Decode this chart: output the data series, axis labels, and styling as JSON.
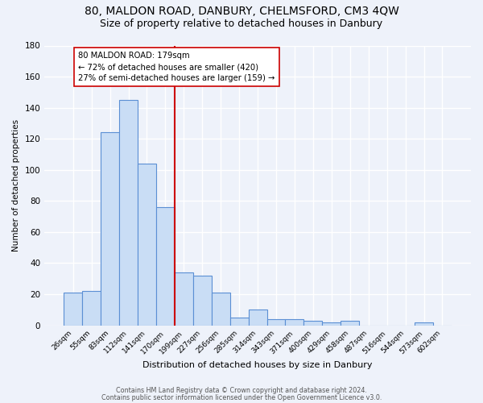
{
  "title1": "80, MALDON ROAD, DANBURY, CHELMSFORD, CM3 4QW",
  "title2": "Size of property relative to detached houses in Danbury",
  "xlabel": "Distribution of detached houses by size in Danbury",
  "ylabel": "Number of detached properties",
  "categories": [
    "26sqm",
    "55sqm",
    "83sqm",
    "112sqm",
    "141sqm",
    "170sqm",
    "199sqm",
    "227sqm",
    "256sqm",
    "285sqm",
    "314sqm",
    "343sqm",
    "371sqm",
    "400sqm",
    "429sqm",
    "458sqm",
    "487sqm",
    "516sqm",
    "544sqm",
    "573sqm",
    "602sqm"
  ],
  "values": [
    21,
    22,
    124,
    145,
    104,
    76,
    34,
    32,
    21,
    5,
    10,
    4,
    4,
    3,
    2,
    3,
    0,
    0,
    0,
    2,
    0
  ],
  "bar_color": "#c9ddf5",
  "bar_edge_color": "#5b8fd4",
  "vline_color": "#cc0000",
  "annotation_line1": "80 MALDON ROAD: 179sqm",
  "annotation_line2": "← 72% of detached houses are smaller (420)",
  "annotation_line3": "27% of semi-detached houses are larger (159) →",
  "ylim": [
    0,
    180
  ],
  "yticks": [
    0,
    20,
    40,
    60,
    80,
    100,
    120,
    140,
    160,
    180
  ],
  "footer1": "Contains HM Land Registry data © Crown copyright and database right 2024.",
  "footer2": "Contains public sector information licensed under the Open Government Licence v3.0.",
  "bg_color": "#eef2fa",
  "grid_color": "#ffffff",
  "title_fontsize": 10,
  "subtitle_fontsize": 9,
  "bar_width": 1.0,
  "vline_xindex": 5.5
}
